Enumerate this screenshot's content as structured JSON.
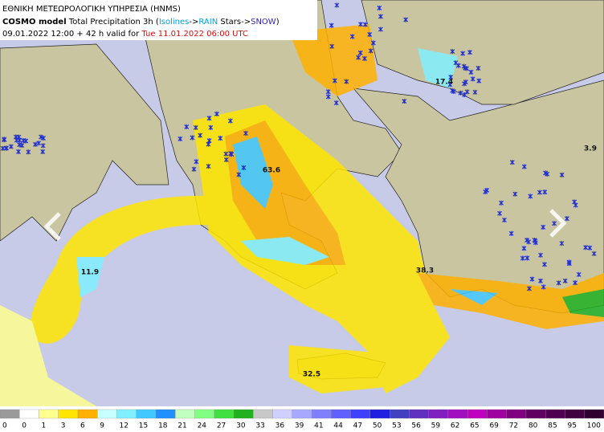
{
  "header": {
    "agency": "ΕΘΝΙΚΗ ΜΕΤΕΩΡΟΛΟΓΙΚΗ ΥΠΗΡΕΣΙΑ (HNMS)",
    "model": "COSMO model",
    "title": " Total Precipitation 3h (",
    "isolines": "Isolines",
    "arrow": "->",
    "rain": "RAIN",
    "stars": " Stars->",
    "snow": "SNOW",
    "close": ")",
    "run": "09.01.2022 12:00 + 42 h valid for ",
    "valid": "Tue 11.01.2022 06:00 UTC"
  },
  "annotations": [
    "11.9",
    "63.6",
    "17.4",
    "38.3",
    "32.5",
    "3.9"
  ],
  "legend": {
    "ticks": [
      "0",
      "0",
      "1",
      "3",
      "6",
      "9",
      "12",
      "15",
      "18",
      "21",
      "24",
      "27",
      "30",
      "33",
      "36",
      "39",
      "41",
      "44",
      "47",
      "50",
      "53",
      "56",
      "59",
      "62",
      "65",
      "69",
      "72",
      "80",
      "85",
      "95",
      "100"
    ],
    "colors": [
      "#9a9a9a",
      "#ffffff",
      "#ffff90",
      "#ffe600",
      "#ffb000",
      "#c8ffff",
      "#80f0ff",
      "#40c8ff",
      "#2090ff",
      "#c0ffc0",
      "#80ff80",
      "#40e040",
      "#20b020",
      "#c8c8c8",
      "#d0d0ff",
      "#a8a8ff",
      "#8080ff",
      "#6060ff",
      "#4040ff",
      "#2020e0",
      "#4040c0",
      "#6030c0",
      "#8020c0",
      "#a010c0",
      "#c000c0",
      "#a000a0",
      "#800080",
      "#600060",
      "#500050",
      "#400040",
      "#300030"
    ]
  }
}
